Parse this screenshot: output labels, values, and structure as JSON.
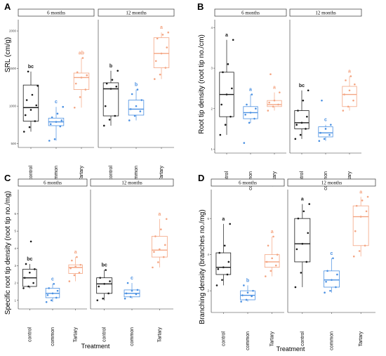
{
  "figure": {
    "x_axis_title": "Treatment"
  },
  "colors": {
    "control": "#1a1a1a",
    "common": "#4a90e2",
    "Tartary": "#f4a582"
  },
  "chart_data": [
    {
      "type": "box",
      "panel": "A",
      "ylabel": "SRL (cm/g)",
      "yticks": [
        500,
        1000,
        1500,
        2000
      ],
      "ylim": [
        450,
        2150
      ],
      "facets": [
        "6 months",
        "12 months"
      ],
      "categories": [
        "control",
        "common",
        "Tartary"
      ],
      "groups": [
        {
          "facet": "6 months",
          "category": "control",
          "box": {
            "min": 660,
            "q1": 800,
            "median": 980,
            "q3": 1280,
            "max": 1460
          },
          "points": [
            660,
            720,
            800,
            880,
            950,
            1010,
            1080,
            1150,
            1270,
            1460
          ],
          "label": "bc"
        },
        {
          "facet": "6 months",
          "category": "common",
          "box": {
            "min": 540,
            "q1": 740,
            "median": 790,
            "q3": 840,
            "max": 990
          },
          "points": [
            540,
            560,
            730,
            760,
            790,
            810,
            850,
            900,
            990
          ],
          "label": "c"
        },
        {
          "facet": "6 months",
          "category": "Tartary",
          "box": {
            "min": 980,
            "q1": 1220,
            "median": 1380,
            "q3": 1440,
            "max": 1640
          },
          "points": [
            980,
            1120,
            1220,
            1300,
            1380,
            1410,
            1450,
            1640
          ],
          "label": "ab"
        },
        {
          "facet": "12 months",
          "category": "control",
          "box": {
            "min": 740,
            "q1": 870,
            "median": 1230,
            "q3": 1310,
            "max": 1470
          },
          "points": [
            740,
            820,
            870,
            1000,
            1230,
            1260,
            1300,
            1350,
            1470
          ],
          "label": "b"
        },
        {
          "facet": "12 months",
          "category": "common",
          "box": {
            "min": 810,
            "q1": 880,
            "median": 960,
            "q3": 1080,
            "max": 1220
          },
          "points": [
            810,
            870,
            930,
            960,
            1000,
            1080,
            1160,
            1220
          ],
          "label": "b"
        },
        {
          "facet": "12 months",
          "category": "Tartary",
          "box": {
            "min": 1360,
            "q1": 1510,
            "median": 1700,
            "q3": 1910,
            "max": 1980
          },
          "points": [
            1360,
            1420,
            1510,
            1600,
            1700,
            1780,
            1900,
            1950,
            1980
          ],
          "label": "a"
        }
      ]
    },
    {
      "type": "box",
      "panel": "B",
      "ylabel": "Root tip density (root tip no./cm)",
      "yticks": [
        1,
        2,
        3,
        4
      ],
      "ylim": [
        0.9,
        4.2
      ],
      "facets": [
        "6 months",
        "12 months"
      ],
      "categories": [
        "control",
        "common",
        "Tartary"
      ],
      "groups": [
        {
          "facet": "6 months",
          "category": "control",
          "box": {
            "min": 1.35,
            "q1": 1.8,
            "median": 2.35,
            "q3": 2.9,
            "max": 3.7
          },
          "points": [
            1.35,
            1.6,
            1.8,
            2.1,
            2.35,
            2.5,
            2.9,
            3.1,
            3.7
          ],
          "label": "a"
        },
        {
          "facet": "6 months",
          "category": "common",
          "box": {
            "min": 1.65,
            "q1": 1.75,
            "median": 1.9,
            "q3": 2.05,
            "max": 2.35
          },
          "points": [
            1.15,
            1.65,
            1.75,
            1.85,
            1.9,
            2.0,
            2.1,
            2.35
          ],
          "label": "a"
        },
        {
          "facet": "6 months",
          "category": "Tartary",
          "box": {
            "min": 1.95,
            "q1": 2.05,
            "median": 2.1,
            "q3": 2.2,
            "max": 2.4
          },
          "points": [
            1.95,
            2.05,
            2.1,
            2.15,
            2.2,
            2.4,
            2.85
          ],
          "label": "a"
        },
        {
          "facet": "12 months",
          "category": "control",
          "box": {
            "min": 1.25,
            "q1": 1.5,
            "median": 1.65,
            "q3": 1.95,
            "max": 2.45
          },
          "points": [
            1.25,
            1.35,
            1.5,
            1.6,
            1.65,
            1.8,
            1.95,
            2.2,
            2.45
          ],
          "label": "bc"
        },
        {
          "facet": "12 months",
          "category": "common",
          "box": {
            "min": 1.2,
            "q1": 1.3,
            "median": 1.4,
            "q3": 1.55,
            "max": 1.6
          },
          "points": [
            1.2,
            1.25,
            1.35,
            1.4,
            1.5,
            1.6,
            2.2
          ],
          "label": "c"
        },
        {
          "facet": "12 months",
          "category": "Tartary",
          "box": {
            "min": 1.95,
            "q1": 2.05,
            "median": 2.35,
            "q3": 2.55,
            "max": 2.8
          },
          "points": [
            1.95,
            2.05,
            2.2,
            2.35,
            2.45,
            2.6,
            2.7,
            2.8
          ],
          "label": "a"
        }
      ]
    },
    {
      "type": "box",
      "panel": "C",
      "ylabel": "Specific root tip density (root tip no./mg)",
      "yticks": [
        1,
        2,
        3,
        4,
        5,
        6
      ],
      "ylim": [
        0.5,
        7.4
      ],
      "facets": [
        "6 months",
        "12 months"
      ],
      "categories": [
        "control",
        "common",
        "Tartary"
      ],
      "groups": [
        {
          "facet": "6 months",
          "category": "control",
          "box": {
            "min": 1.7,
            "q1": 1.8,
            "median": 2.3,
            "q3": 2.8,
            "max": 3.1
          },
          "points": [
            1.7,
            1.8,
            2.0,
            2.3,
            2.6,
            2.8,
            3.1,
            4.4
          ],
          "label": "bc"
        },
        {
          "facet": "6 months",
          "category": "common",
          "box": {
            "min": 0.9,
            "q1": 1.15,
            "median": 1.4,
            "q3": 1.7,
            "max": 1.95
          },
          "points": [
            0.9,
            1.0,
            1.15,
            1.3,
            1.4,
            1.55,
            1.7,
            1.95
          ],
          "label": "c"
        },
        {
          "facet": "6 months",
          "category": "Tartary",
          "box": {
            "min": 2.1,
            "q1": 2.55,
            "median": 2.9,
            "q3": 3.05,
            "max": 3.5
          },
          "points": [
            2.1,
            2.45,
            2.6,
            2.85,
            2.95,
            3.05,
            3.3,
            3.5
          ],
          "label": "a"
        },
        {
          "facet": "12 months",
          "category": "control",
          "box": {
            "min": 1.0,
            "q1": 1.4,
            "median": 1.95,
            "q3": 2.3,
            "max": 2.75
          },
          "points": [
            1.0,
            1.1,
            1.4,
            1.8,
            1.95,
            2.1,
            2.3,
            2.75
          ],
          "label": "bc"
        },
        {
          "facet": "12 months",
          "category": "common",
          "box": {
            "min": 1.1,
            "q1": 1.2,
            "median": 1.4,
            "q3": 1.6,
            "max": 2.0
          },
          "points": [
            1.1,
            1.2,
            1.35,
            1.4,
            1.55,
            1.6,
            2.0
          ],
          "label": "c"
        },
        {
          "facet": "12 months",
          "category": "Tartary",
          "box": {
            "min": 2.9,
            "q1": 3.5,
            "median": 3.9,
            "q3": 4.7,
            "max": 5.7
          },
          "points": [
            2.9,
            3.2,
            3.5,
            3.8,
            3.95,
            4.2,
            4.7,
            5.1,
            5.7
          ],
          "label": "a"
        }
      ]
    },
    {
      "type": "box",
      "panel": "D",
      "ylabel": "Branching density (branches no./mg)",
      "yticks": [
        2,
        4,
        6
      ],
      "ylim": [
        0.8,
        7.6
      ],
      "facets": [
        "6 months",
        "12 months"
      ],
      "categories": [
        "control",
        "common",
        "Tartary"
      ],
      "groups": [
        {
          "facet": "6 months",
          "category": "control",
          "box": {
            "min": 2.3,
            "q1": 2.9,
            "median": 3.3,
            "q3": 4.1,
            "max": 5.7
          },
          "points": [
            2.3,
            2.6,
            2.9,
            3.2,
            3.3,
            3.6,
            4.1,
            4.5,
            5.7
          ],
          "label": "a"
        },
        {
          "facet": "6 months",
          "category": "common",
          "box": {
            "min": 1.4,
            "q1": 1.5,
            "median": 1.75,
            "q3": 2.0,
            "max": 2.3
          },
          "points": [
            1.4,
            1.5,
            1.7,
            1.75,
            1.9,
            2.0,
            2.3
          ],
          "label": "b"
        },
        {
          "facet": "6 months",
          "category": "Tartary",
          "box": {
            "min": 2.8,
            "q1": 3.3,
            "median": 3.6,
            "q3": 4.0,
            "max": 5.0
          },
          "points": [
            2.8,
            3.1,
            3.4,
            3.6,
            3.8,
            4.0,
            4.5,
            5.0
          ],
          "label": "a"
        },
        {
          "facet": "12 months",
          "category": "control",
          "box": {
            "min": 2.2,
            "q1": 3.6,
            "median": 4.6,
            "q3": 6.0,
            "max": 6.8
          },
          "points": [
            2.2,
            3.0,
            3.6,
            4.3,
            4.6,
            5.2,
            6.0,
            6.4,
            6.8
          ],
          "label": "a"
        },
        {
          "facet": "12 months",
          "category": "common",
          "box": {
            "min": 1.9,
            "q1": 2.2,
            "median": 2.6,
            "q3": 3.1,
            "max": 3.8
          },
          "points": [
            1.9,
            2.0,
            2.2,
            2.5,
            2.6,
            2.9,
            3.1,
            3.8
          ],
          "label": "c"
        },
        {
          "facet": "12 months",
          "category": "Tartary",
          "box": {
            "min": 3.9,
            "q1": 4.5,
            "median": 6.1,
            "q3": 6.7,
            "max": 7.2
          },
          "points": [
            3.9,
            4.2,
            4.5,
            5.3,
            6.1,
            6.4,
            6.7,
            7.0,
            7.2
          ],
          "label": "a"
        }
      ]
    }
  ]
}
